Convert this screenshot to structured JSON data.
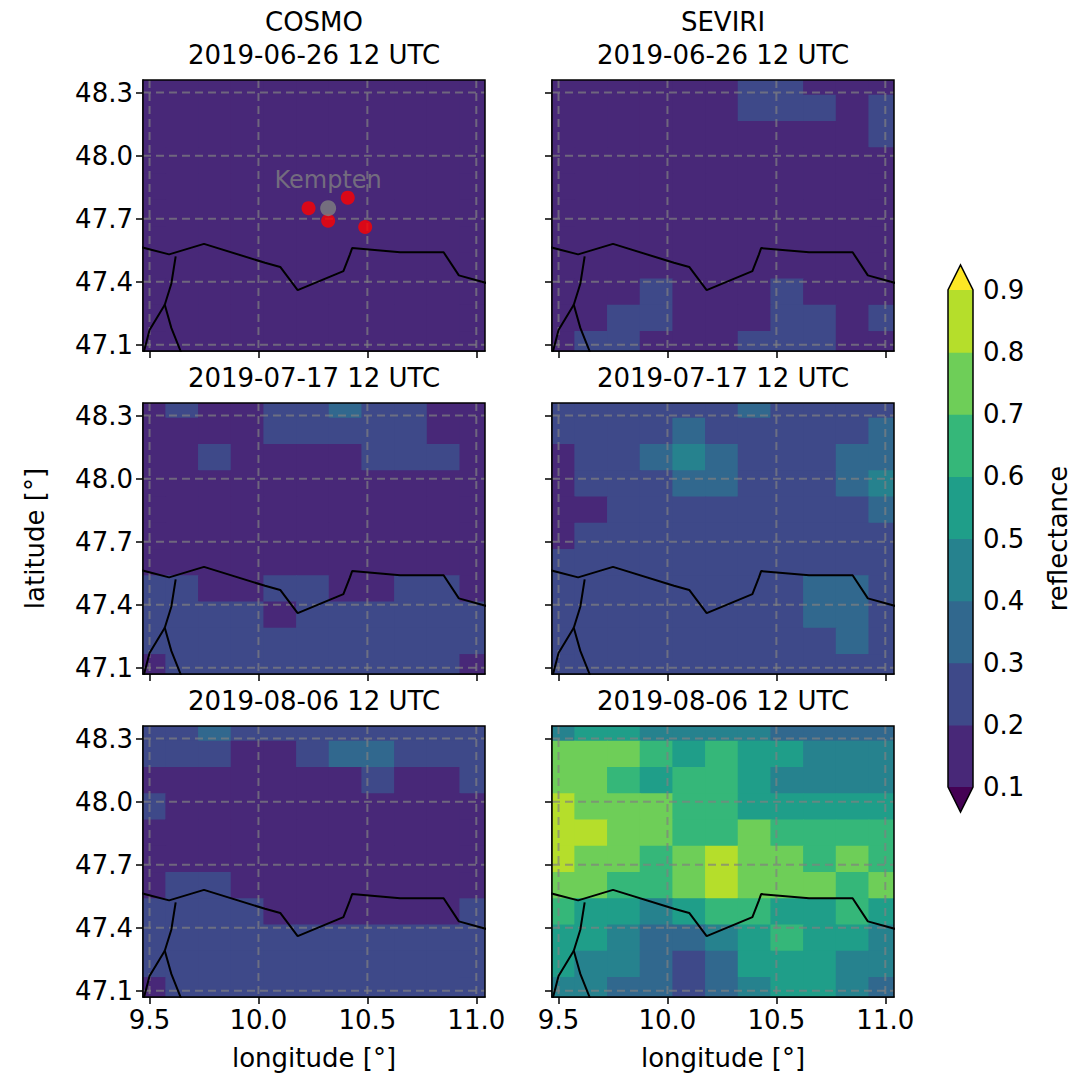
{
  "chart_data": {
    "type": "contour_map",
    "columns": [
      "COSMO",
      "SEVIRI"
    ],
    "xlabel": "longitude [°]",
    "ylabel": "latitude [°]",
    "xlim": [
      9.47,
      11.04
    ],
    "ylim": [
      47.07,
      48.36
    ],
    "xticks": [
      9.5,
      {
        "value": 10,
        "label": "10.0"
      },
      10.5,
      {
        "value": 11,
        "label": "11.0"
      }
    ],
    "yticks": [
      47.1,
      47.4,
      47.7,
      {
        "value": 48,
        "label": "48.0"
      },
      48.3
    ],
    "grid": true,
    "lon": [
      9.5,
      9.65,
      9.8,
      9.95,
      10.1,
      10.25,
      10.4,
      10.55,
      10.7,
      10.85,
      11.0
    ],
    "lat": [
      48.35,
      48.225,
      48.1,
      47.975,
      47.85,
      47.725,
      47.6,
      47.475,
      47.35,
      47.225,
      47.1
    ],
    "colorbar": {
      "label": "reflectance",
      "levels": [
        0.1,
        0.2,
        0.3,
        0.4,
        0.5,
        0.6,
        0.7,
        0.8,
        0.9
      ],
      "ticks": [
        0.1,
        0.2,
        0.3,
        0.4,
        0.5,
        0.6,
        0.7,
        0.8,
        0.9
      ],
      "colors": [
        "#440154",
        "#482878",
        "#3e4989",
        "#31688e",
        "#26828e",
        "#1f9e89",
        "#35b779",
        "#6ece58",
        "#b5de2b",
        "#fde725"
      ]
    },
    "borders": [
      [
        [
          9.44,
          47.57
        ],
        [
          9.59,
          47.53
        ],
        [
          9.75,
          47.58
        ],
        [
          10.03,
          47.49
        ],
        [
          10.1,
          47.47
        ],
        [
          10.18,
          47.36
        ],
        [
          10.39,
          47.45
        ],
        [
          10.42,
          47.53
        ],
        [
          10.43,
          47.56
        ],
        [
          10.65,
          47.54
        ],
        [
          10.85,
          47.54
        ],
        [
          10.92,
          47.43
        ],
        [
          11.06,
          47.39
        ]
      ],
      [
        [
          9.62,
          47.52
        ],
        [
          9.6,
          47.39
        ],
        [
          9.57,
          47.29
        ],
        [
          9.6,
          47.18
        ],
        [
          9.65,
          47.05
        ]
      ],
      [
        [
          9.57,
          47.29
        ],
        [
          9.5,
          47.17
        ],
        [
          9.47,
          47.05
        ]
      ]
    ],
    "site": {
      "label": "Kempten",
      "lon": 10.32,
      "lat": 47.75,
      "color": "gray"
    },
    "stations": {
      "color": "red",
      "points": [
        [
          10.23,
          47.75
        ],
        [
          10.32,
          47.69
        ],
        [
          10.41,
          47.8
        ],
        [
          10.49,
          47.66
        ]
      ]
    },
    "rows": [
      {
        "title": "2019-06-26 12 UTC",
        "values": [
          [
            [
              0.13,
              0.14,
              0.13,
              0.12,
              0.13,
              0.15,
              0.17,
              0.14,
              0.13,
              0.13,
              0.14
            ],
            [
              0.13,
              0.12,
              0.12,
              0.13,
              0.14,
              0.13,
              0.14,
              0.13,
              0.12,
              0.13,
              0.14
            ],
            [
              0.12,
              0.12,
              0.13,
              0.12,
              0.13,
              0.12,
              0.13,
              0.14,
              0.13,
              0.15,
              0.14
            ],
            [
              0.12,
              0.13,
              0.12,
              0.12,
              0.12,
              0.13,
              0.13,
              0.13,
              0.14,
              0.17,
              0.14
            ],
            [
              0.13,
              0.12,
              0.12,
              0.12,
              0.12,
              0.12,
              0.13,
              0.12,
              0.13,
              0.14,
              0.13
            ],
            [
              0.12,
              0.12,
              0.12,
              0.12,
              0.12,
              0.12,
              0.12,
              0.12,
              0.12,
              0.13,
              0.13
            ],
            [
              0.12,
              0.12,
              0.12,
              0.11,
              0.12,
              0.12,
              0.12,
              0.12,
              0.12,
              0.12,
              0.13
            ],
            [
              0.12,
              0.12,
              0.11,
              0.11,
              0.12,
              0.12,
              0.12,
              0.12,
              0.12,
              0.12,
              0.12
            ],
            [
              0.11,
              0.12,
              0.12,
              0.11,
              0.11,
              0.12,
              0.12,
              0.12,
              0.11,
              0.12,
              0.12
            ],
            [
              0.12,
              0.11,
              0.12,
              0.12,
              0.11,
              0.11,
              0.12,
              0.12,
              0.12,
              0.12,
              0.11
            ],
            [
              0.11,
              0.12,
              0.12,
              0.11,
              0.12,
              0.12,
              0.11,
              0.12,
              0.12,
              0.11,
              0.12
            ]
          ],
          [
            [
              0.14,
              0.13,
              0.14,
              0.15,
              0.17,
              0.18,
              0.21,
              0.22,
              0.19,
              0.17,
              0.16
            ],
            [
              0.13,
              0.14,
              0.15,
              0.16,
              0.18,
              0.19,
              0.21,
              0.23,
              0.21,
              0.18,
              0.2
            ],
            [
              0.13,
              0.14,
              0.15,
              0.15,
              0.16,
              0.17,
              0.18,
              0.19,
              0.19,
              0.18,
              0.21
            ],
            [
              0.12,
              0.13,
              0.13,
              0.14,
              0.15,
              0.15,
              0.16,
              0.17,
              0.17,
              0.16,
              0.18
            ],
            [
              0.12,
              0.12,
              0.13,
              0.13,
              0.14,
              0.14,
              0.15,
              0.15,
              0.15,
              0.15,
              0.16
            ],
            [
              0.12,
              0.12,
              0.12,
              0.13,
              0.13,
              0.14,
              0.14,
              0.14,
              0.14,
              0.15,
              0.15
            ],
            [
              0.13,
              0.13,
              0.13,
              0.13,
              0.13,
              0.14,
              0.15,
              0.15,
              0.15,
              0.16,
              0.16
            ],
            [
              0.15,
              0.16,
              0.16,
              0.17,
              0.17,
              0.17,
              0.18,
              0.18,
              0.17,
              0.17,
              0.18
            ],
            [
              0.17,
              0.18,
              0.19,
              0.2,
              0.19,
              0.18,
              0.19,
              0.2,
              0.19,
              0.18,
              0.19
            ],
            [
              0.18,
              0.19,
              0.21,
              0.2,
              0.19,
              0.18,
              0.19,
              0.21,
              0.2,
              0.19,
              0.2
            ],
            [
              0.18,
              0.2,
              0.21,
              0.19,
              0.18,
              0.19,
              0.2,
              0.21,
              0.2,
              0.19,
              0.19
            ]
          ]
        ]
      },
      {
        "title": "2019-07-17 12 UTC",
        "values": [
          [
            [
              0.17,
              0.2,
              0.18,
              0.17,
              0.22,
              0.27,
              0.34,
              0.28,
              0.24,
              0.19,
              0.18
            ],
            [
              0.16,
              0.18,
              0.17,
              0.19,
              0.2,
              0.24,
              0.28,
              0.26,
              0.22,
              0.17,
              0.16
            ],
            [
              0.15,
              0.17,
              0.2,
              0.18,
              0.17,
              0.18,
              0.19,
              0.2,
              0.21,
              0.2,
              0.17
            ],
            [
              0.14,
              0.16,
              0.17,
              0.16,
              0.15,
              0.15,
              0.16,
              0.17,
              0.19,
              0.18,
              0.16
            ],
            [
              0.14,
              0.15,
              0.15,
              0.14,
              0.14,
              0.14,
              0.15,
              0.15,
              0.16,
              0.17,
              0.15
            ],
            [
              0.15,
              0.14,
              0.14,
              0.14,
              0.13,
              0.14,
              0.14,
              0.14,
              0.15,
              0.16,
              0.15
            ],
            [
              0.16,
              0.15,
              0.15,
              0.14,
              0.14,
              0.14,
              0.15,
              0.16,
              0.16,
              0.15,
              0.15
            ],
            [
              0.2,
              0.21,
              0.19,
              0.18,
              0.2,
              0.21,
              0.18,
              0.19,
              0.21,
              0.2,
              0.19
            ],
            [
              0.23,
              0.2,
              0.24,
              0.22,
              0.19,
              0.21,
              0.23,
              0.22,
              0.2,
              0.22,
              0.2
            ],
            [
              0.21,
              0.22,
              0.26,
              0.2,
              0.22,
              0.2,
              0.21,
              0.23,
              0.24,
              0.2,
              0.21
            ],
            [
              0.19,
              0.21,
              0.2,
              0.22,
              0.2,
              0.21,
              0.2,
              0.21,
              0.23,
              0.2,
              0.19
            ]
          ],
          [
            [
              0.22,
              0.25,
              0.24,
              0.21,
              0.24,
              0.27,
              0.3,
              0.28,
              0.25,
              0.24,
              0.26
            ],
            [
              0.2,
              0.24,
              0.27,
              0.26,
              0.3,
              0.28,
              0.26,
              0.25,
              0.27,
              0.29,
              0.3
            ],
            [
              0.18,
              0.22,
              0.26,
              0.3,
              0.4,
              0.34,
              0.28,
              0.25,
              0.27,
              0.3,
              0.36
            ],
            [
              0.17,
              0.2,
              0.23,
              0.27,
              0.32,
              0.3,
              0.26,
              0.24,
              0.26,
              0.3,
              0.42
            ],
            [
              0.17,
              0.18,
              0.2,
              0.22,
              0.25,
              0.26,
              0.24,
              0.23,
              0.24,
              0.27,
              0.33
            ],
            [
              0.18,
              0.2,
              0.22,
              0.21,
              0.22,
              0.24,
              0.22,
              0.21,
              0.22,
              0.24,
              0.27
            ],
            [
              0.2,
              0.23,
              0.24,
              0.22,
              0.21,
              0.2,
              0.21,
              0.22,
              0.23,
              0.24,
              0.25
            ],
            [
              0.22,
              0.25,
              0.26,
              0.24,
              0.22,
              0.23,
              0.25,
              0.27,
              0.31,
              0.33,
              0.28
            ],
            [
              0.24,
              0.27,
              0.25,
              0.23,
              0.25,
              0.27,
              0.26,
              0.28,
              0.32,
              0.3,
              0.27
            ],
            [
              0.23,
              0.28,
              0.26,
              0.24,
              0.26,
              0.28,
              0.25,
              0.27,
              0.28,
              0.3,
              0.26
            ],
            [
              0.22,
              0.25,
              0.24,
              0.23,
              0.25,
              0.27,
              0.24,
              0.26,
              0.27,
              0.28,
              0.25
            ]
          ]
        ]
      },
      {
        "title": "2019-08-06 12 UTC",
        "values": [
          [
            [
              0.22,
              0.26,
              0.3,
              0.24,
              0.2,
              0.22,
              0.24,
              0.22,
              0.2,
              0.21,
              0.22
            ],
            [
              0.2,
              0.22,
              0.23,
              0.19,
              0.18,
              0.25,
              0.3,
              0.32,
              0.24,
              0.2,
              0.21
            ],
            [
              0.19,
              0.18,
              0.16,
              0.15,
              0.15,
              0.17,
              0.19,
              0.2,
              0.19,
              0.18,
              0.2
            ],
            [
              0.2,
              0.18,
              0.15,
              0.14,
              0.14,
              0.15,
              0.16,
              0.17,
              0.17,
              0.17,
              0.18
            ],
            [
              0.19,
              0.17,
              0.15,
              0.14,
              0.14,
              0.14,
              0.15,
              0.16,
              0.16,
              0.17,
              0.18
            ],
            [
              0.18,
              0.17,
              0.15,
              0.14,
              0.14,
              0.14,
              0.14,
              0.15,
              0.15,
              0.16,
              0.17
            ],
            [
              0.19,
              0.21,
              0.2,
              0.17,
              0.15,
              0.14,
              0.15,
              0.16,
              0.16,
              0.16,
              0.17
            ],
            [
              0.2,
              0.24,
              0.28,
              0.22,
              0.18,
              0.17,
              0.17,
              0.18,
              0.18,
              0.19,
              0.2
            ],
            [
              0.21,
              0.22,
              0.23,
              0.21,
              0.2,
              0.21,
              0.2,
              0.22,
              0.21,
              0.2,
              0.21
            ],
            [
              0.2,
              0.21,
              0.22,
              0.2,
              0.22,
              0.21,
              0.22,
              0.23,
              0.21,
              0.26,
              0.21
            ],
            [
              0.19,
              0.2,
              0.21,
              0.2,
              0.21,
              0.2,
              0.21,
              0.22,
              0.21,
              0.22,
              0.2
            ]
          ],
          [
            [
              0.45,
              0.5,
              0.55,
              0.45,
              0.4,
              0.45,
              0.4,
              0.35,
              0.35,
              0.3,
              0.35
            ],
            [
              0.7,
              0.78,
              0.72,
              0.6,
              0.55,
              0.6,
              0.5,
              0.5,
              0.45,
              0.45,
              0.4
            ],
            [
              0.75,
              0.7,
              0.6,
              0.55,
              0.65,
              0.6,
              0.55,
              0.45,
              0.45,
              0.4,
              0.4
            ],
            [
              0.85,
              0.78,
              0.72,
              0.72,
              0.65,
              0.6,
              0.55,
              0.5,
              0.5,
              0.55,
              0.5
            ],
            [
              0.85,
              0.8,
              0.75,
              0.7,
              0.6,
              0.65,
              0.7,
              0.6,
              0.6,
              0.65,
              0.6
            ],
            [
              0.82,
              0.75,
              0.72,
              0.65,
              0.72,
              0.82,
              0.78,
              0.7,
              0.65,
              0.7,
              0.65
            ],
            [
              0.78,
              0.7,
              0.65,
              0.6,
              0.75,
              0.85,
              0.78,
              0.72,
              0.7,
              0.65,
              0.7
            ],
            [
              0.6,
              0.55,
              0.5,
              0.45,
              0.55,
              0.65,
              0.6,
              0.55,
              0.55,
              0.6,
              0.5
            ],
            [
              0.55,
              0.5,
              0.45,
              0.35,
              0.35,
              0.45,
              0.55,
              0.6,
              0.55,
              0.5,
              0.45
            ],
            [
              0.5,
              0.45,
              0.4,
              0.3,
              0.25,
              0.35,
              0.5,
              0.55,
              0.55,
              0.45,
              0.4
            ],
            [
              0.45,
              0.4,
              0.35,
              0.3,
              0.25,
              0.35,
              0.45,
              0.55,
              0.5,
              0.4,
              0.35
            ]
          ]
        ]
      }
    ]
  }
}
